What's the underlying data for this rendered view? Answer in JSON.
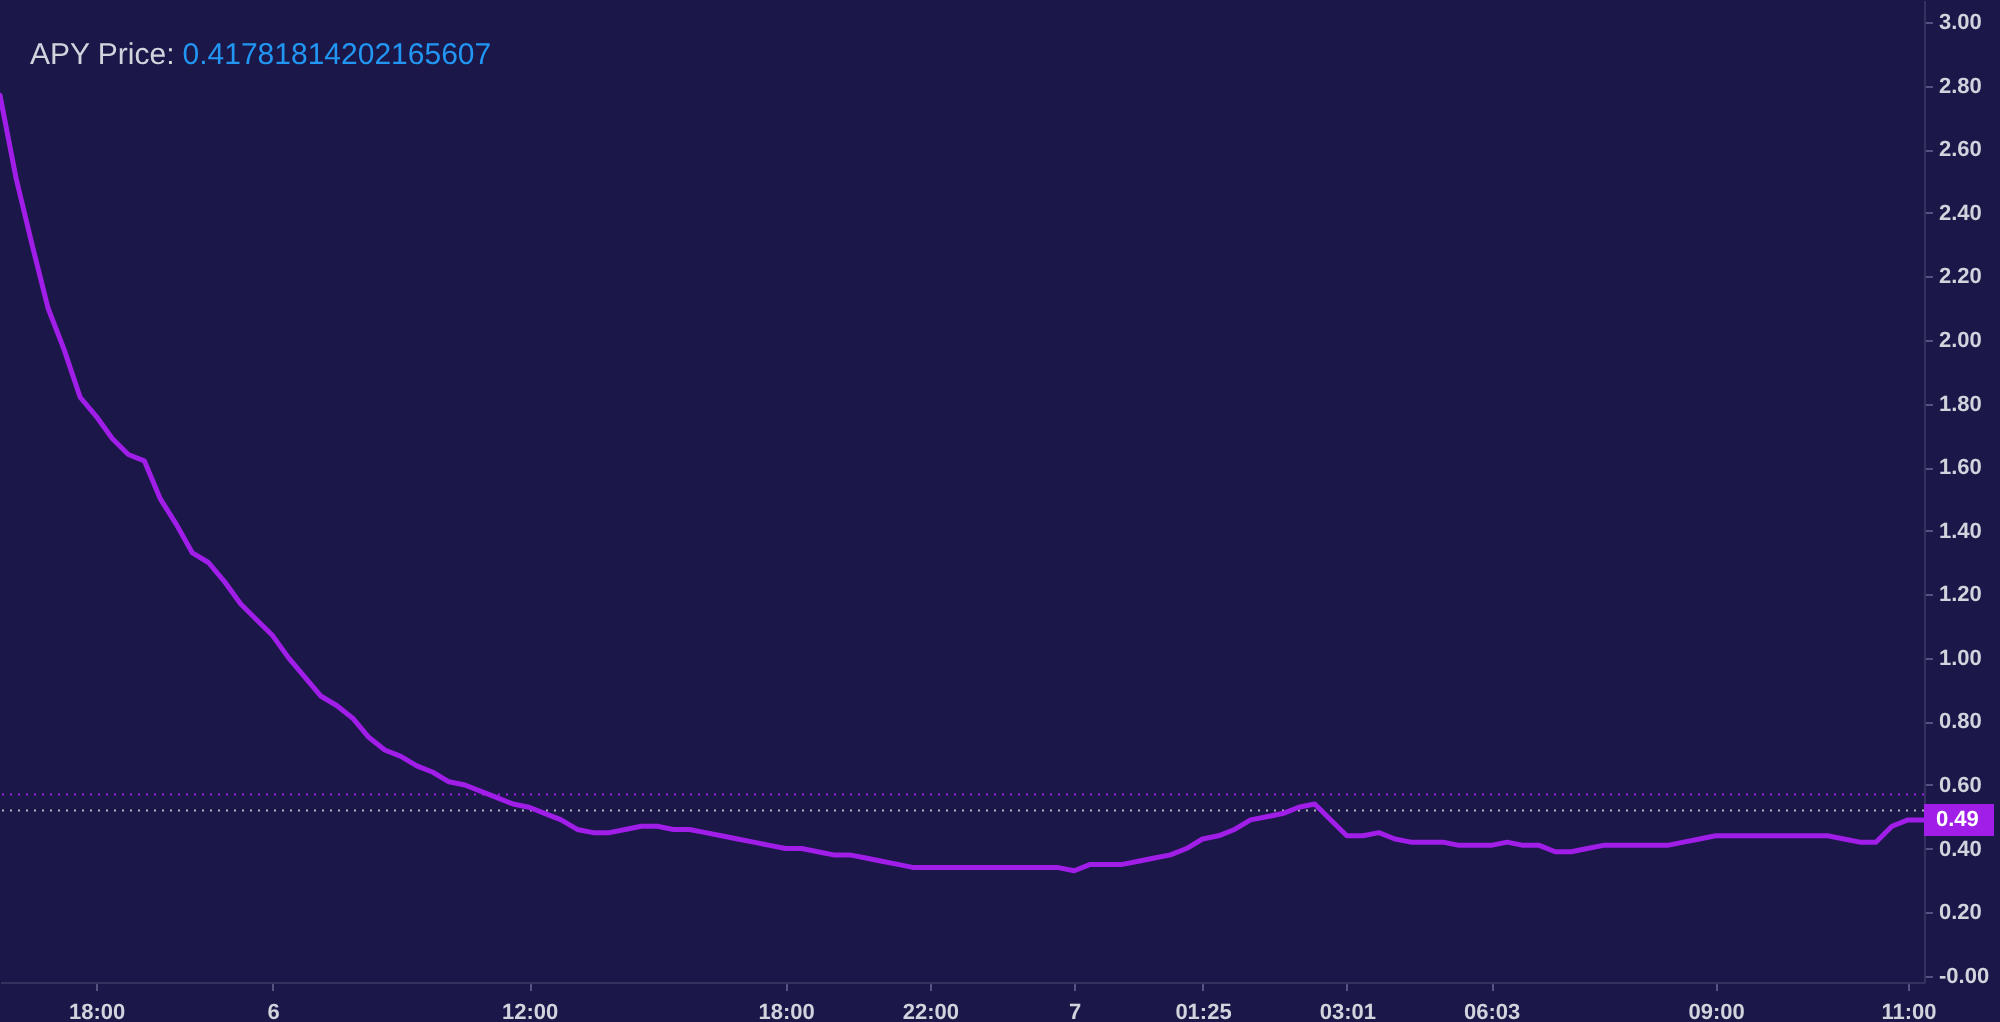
{
  "chart_data": {
    "type": "line",
    "title": "APY Price:",
    "subtitle": "0.41781814202165607",
    "categories": [
      null,
      null,
      null,
      null,
      null,
      null,
      "18:00",
      null,
      null,
      null,
      null,
      null,
      null,
      null,
      null,
      null,
      null,
      "6",
      null,
      null,
      null,
      null,
      null,
      null,
      null,
      null,
      null,
      null,
      null,
      null,
      null,
      null,
      null,
      "12:00",
      null,
      null,
      null,
      null,
      null,
      null,
      null,
      null,
      null,
      null,
      null,
      null,
      null,
      null,
      null,
      "18:00",
      null,
      null,
      null,
      null,
      null,
      null,
      null,
      null,
      "22:00",
      null,
      null,
      null,
      null,
      null,
      null,
      null,
      null,
      "7",
      null,
      null,
      null,
      null,
      null,
      null,
      null,
      "01:25",
      null,
      null,
      null,
      null,
      null,
      null,
      null,
      null,
      "03:01",
      null,
      null,
      null,
      null,
      null,
      null,
      null,
      null,
      "06:03",
      null,
      null,
      null,
      null,
      null,
      null,
      null,
      null,
      null,
      null,
      null,
      null,
      null,
      "09:00",
      null,
      null,
      null,
      null,
      null,
      null,
      null,
      null,
      null,
      null,
      null,
      "11:00",
      null
    ],
    "series": [
      {
        "color": "#a01ee8",
        "values": [
          2.77,
          2.51,
          2.3,
          2.1,
          1.97,
          1.82,
          1.76,
          1.69,
          1.64,
          1.62,
          1.5,
          1.42,
          1.33,
          1.3,
          1.24,
          1.17,
          1.12,
          1.07,
          1.0,
          0.94,
          0.88,
          0.85,
          0.81,
          0.75,
          0.71,
          0.69,
          0.66,
          0.64,
          0.61,
          0.6,
          0.58,
          0.56,
          0.54,
          0.53,
          0.51,
          0.49,
          0.46,
          0.45,
          0.45,
          0.46,
          0.47,
          0.47,
          0.46,
          0.46,
          0.45,
          0.44,
          0.43,
          0.42,
          0.41,
          0.4,
          0.4,
          0.39,
          0.38,
          0.38,
          0.37,
          0.36,
          0.35,
          0.34,
          0.34,
          0.34,
          0.34,
          0.34,
          0.34,
          0.34,
          0.34,
          0.34,
          0.34,
          0.33,
          0.35,
          0.35,
          0.35,
          0.36,
          0.37,
          0.38,
          0.4,
          0.43,
          0.44,
          0.46,
          0.49,
          0.5,
          0.51,
          0.53,
          0.54,
          0.49,
          0.44,
          0.44,
          0.45,
          0.43,
          0.42,
          0.42,
          0.42,
          0.41,
          0.41,
          0.41,
          0.42,
          0.41,
          0.41,
          0.39,
          0.39,
          0.4,
          0.41,
          0.41,
          0.41,
          0.41,
          0.41,
          0.42,
          0.43,
          0.44,
          0.44,
          0.44,
          0.44,
          0.44,
          0.44,
          0.44,
          0.44,
          0.43,
          0.42,
          0.42,
          0.47,
          0.49,
          0.49
        ]
      }
    ],
    "ylim": [
      -0.02,
      3.07
    ],
    "yticks": [
      {
        "value": 0,
        "label": "-0.00"
      },
      {
        "value": 0.2,
        "label": "0.20"
      },
      {
        "value": 0.4,
        "label": "0.40"
      },
      {
        "value": 0.6,
        "label": "0.60"
      },
      {
        "value": 0.8,
        "label": "0.80"
      },
      {
        "value": 1,
        "label": "1.00"
      },
      {
        "value": 1.2,
        "label": "1.20"
      },
      {
        "value": 1.4,
        "label": "1.40"
      },
      {
        "value": 1.6,
        "label": "1.60"
      },
      {
        "value": 1.8,
        "label": "1.80"
      },
      {
        "value": 2,
        "label": "2.00"
      },
      {
        "value": 2.2,
        "label": "2.20"
      },
      {
        "value": 2.4,
        "label": "2.40"
      },
      {
        "value": 2.6,
        "label": "2.60"
      },
      {
        "value": 2.8,
        "label": "2.80"
      },
      {
        "value": 3,
        "label": "3.00"
      }
    ],
    "ref_lines": [
      {
        "axis": "y",
        "value": 0.57,
        "color": "#a01ee8",
        "line_style": "dotted"
      },
      {
        "axis": "y",
        "value": 0.52,
        "color": "#b2b5be",
        "line_style": "dotted"
      }
    ],
    "annotations": [
      {
        "text": "0.49",
        "y": 0.49
      }
    ],
    "grid": false,
    "legend": false,
    "marker": "none",
    "line_style": "solid"
  }
}
